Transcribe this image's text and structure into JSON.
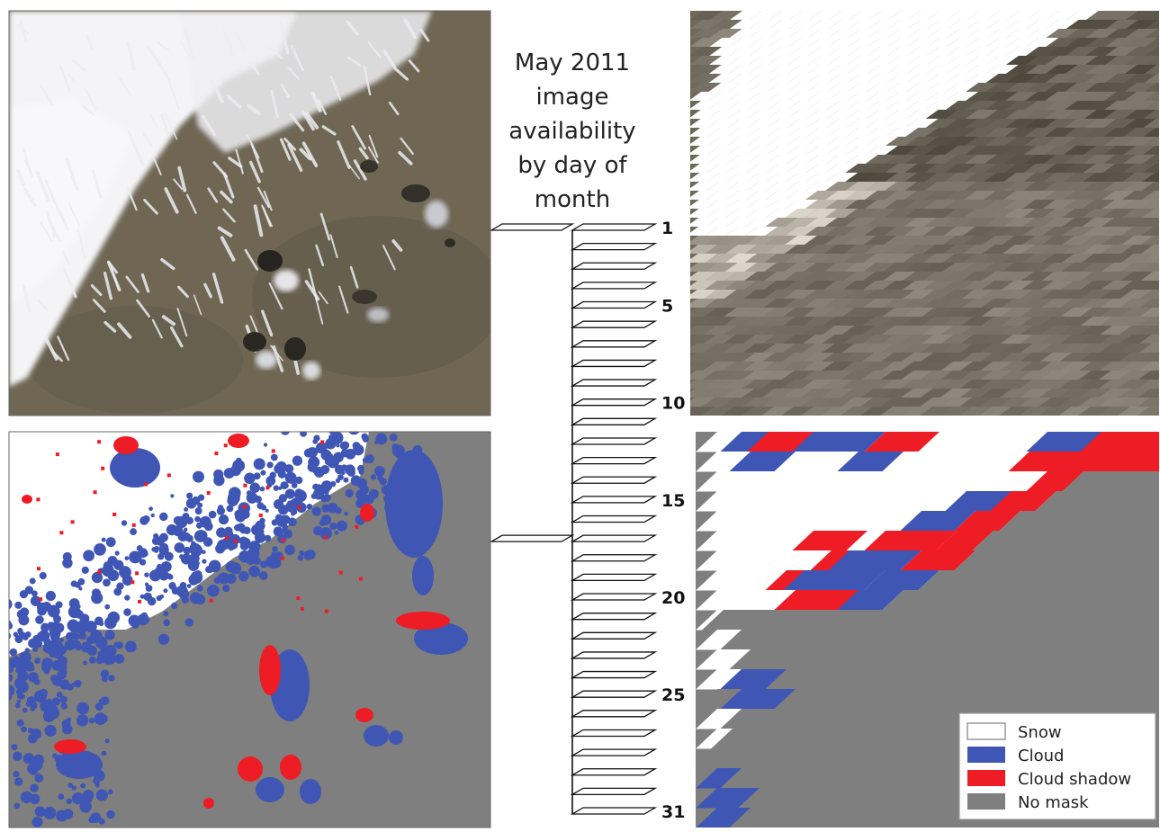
{
  "title_lines": [
    "May 2011",
    "image",
    "availability",
    "by day of",
    "month"
  ],
  "timeline": {
    "first_day": 1,
    "last_day": 31,
    "labeled_days": [
      "1",
      "5",
      "10",
      "15",
      "20",
      "25",
      "31"
    ],
    "highlighted_days": [
      1,
      17
    ]
  },
  "legend": {
    "items": [
      {
        "label": "Snow",
        "color": "#ffffff"
      },
      {
        "label": "Cloud",
        "color": "#3f56b4"
      },
      {
        "label": "Cloud shadow",
        "color": "#ee1c24"
      },
      {
        "label": "No mask",
        "color": "#7f7f7f"
      }
    ]
  },
  "colors": {
    "terrain": "#6f6754",
    "snow": "#ffffff",
    "cloud": "#3f56b4",
    "shadow": "#ee1c24",
    "nomask": "#7f7f7f"
  }
}
